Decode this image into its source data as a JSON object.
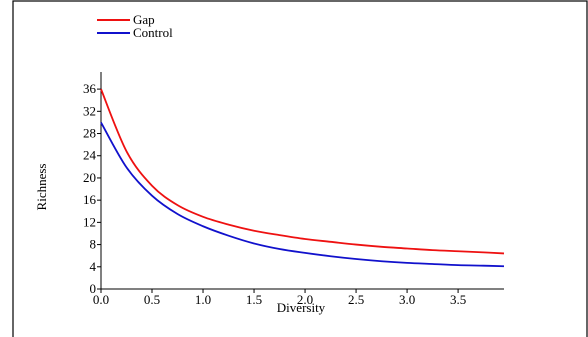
{
  "chart_data": {
    "type": "line",
    "title": "",
    "xlabel": "Diversity",
    "ylabel": "Richness",
    "xlim": [
      0.0,
      3.95
    ],
    "ylim": [
      0,
      38
    ],
    "x_ticks": [
      "0.0",
      "0.5",
      "1.0",
      "1.5",
      "2.0",
      "2.5",
      "3.0",
      "3.5"
    ],
    "y_ticks": [
      "0",
      "4",
      "8",
      "12",
      "16",
      "20",
      "24",
      "28",
      "32",
      "36"
    ],
    "legend_position": "top-left",
    "grid": false,
    "series": [
      {
        "name": "Gap",
        "color": "#ee1111",
        "x": [
          0.0,
          0.25,
          0.5,
          0.75,
          1.0,
          1.25,
          1.5,
          1.75,
          2.0,
          2.25,
          2.5,
          2.75,
          3.0,
          3.25,
          3.5,
          3.75,
          3.95
        ],
        "y": [
          36.0,
          24.8,
          18.6,
          15.1,
          13.0,
          11.6,
          10.5,
          9.7,
          9.0,
          8.5,
          8.0,
          7.6,
          7.3,
          7.0,
          6.8,
          6.6,
          6.4
        ]
      },
      {
        "name": "Control",
        "color": "#1111cc",
        "x": [
          0.0,
          0.25,
          0.5,
          0.75,
          1.0,
          1.25,
          1.5,
          1.75,
          2.0,
          2.25,
          2.5,
          2.75,
          3.0,
          3.25,
          3.5,
          3.75,
          3.95
        ],
        "y": [
          30.0,
          21.9,
          16.8,
          13.5,
          11.3,
          9.6,
          8.2,
          7.2,
          6.5,
          5.9,
          5.4,
          5.0,
          4.7,
          4.5,
          4.3,
          4.2,
          4.1
        ]
      }
    ]
  }
}
